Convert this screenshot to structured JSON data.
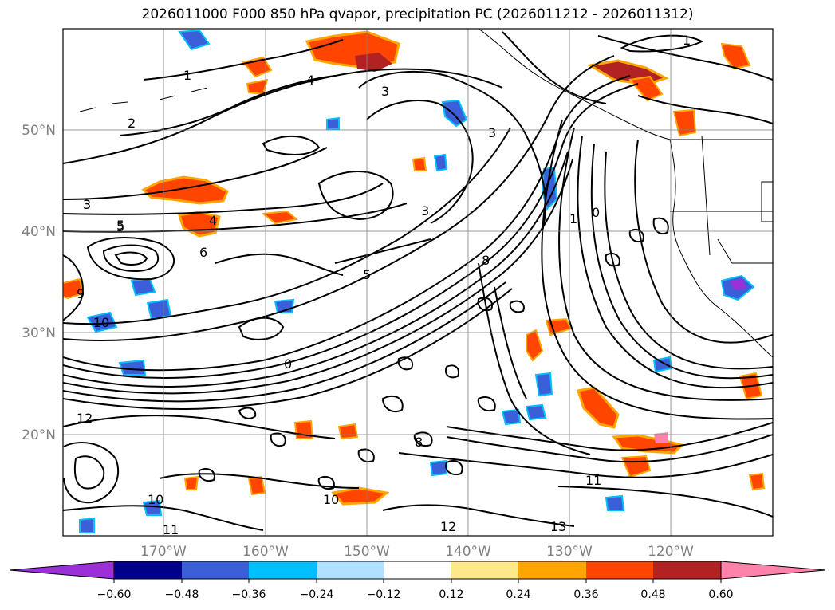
{
  "title": "2026011000 F000 850 hPa qvapor, precipitation PC (2026011212 - 2026011312)",
  "map": {
    "lat_ticks": [
      "50°N",
      "40°N",
      "30°N",
      "20°N"
    ],
    "lon_ticks": [
      "170°W",
      "160°W",
      "150°W",
      "140°W",
      "130°W",
      "120°W"
    ]
  },
  "colorbar": {
    "ticks": [
      "−0.60",
      "−0.48",
      "−0.36",
      "−0.24",
      "−0.12",
      "0.12",
      "0.24",
      "0.36",
      "0.48",
      "0.60"
    ],
    "colors": [
      "#9b30d9",
      "#00008b",
      "#3b5fd9",
      "#00bfff",
      "#b0e0ff",
      "#ffffff",
      "#ffe88c",
      "#ffa500",
      "#ff4500",
      "#b22222",
      "#ff82ab"
    ]
  },
  "contour_labels": [
    "1",
    "2",
    "3",
    "4",
    "5",
    "6",
    "8",
    "9",
    "10",
    "11",
    "12",
    "13",
    "0"
  ]
}
